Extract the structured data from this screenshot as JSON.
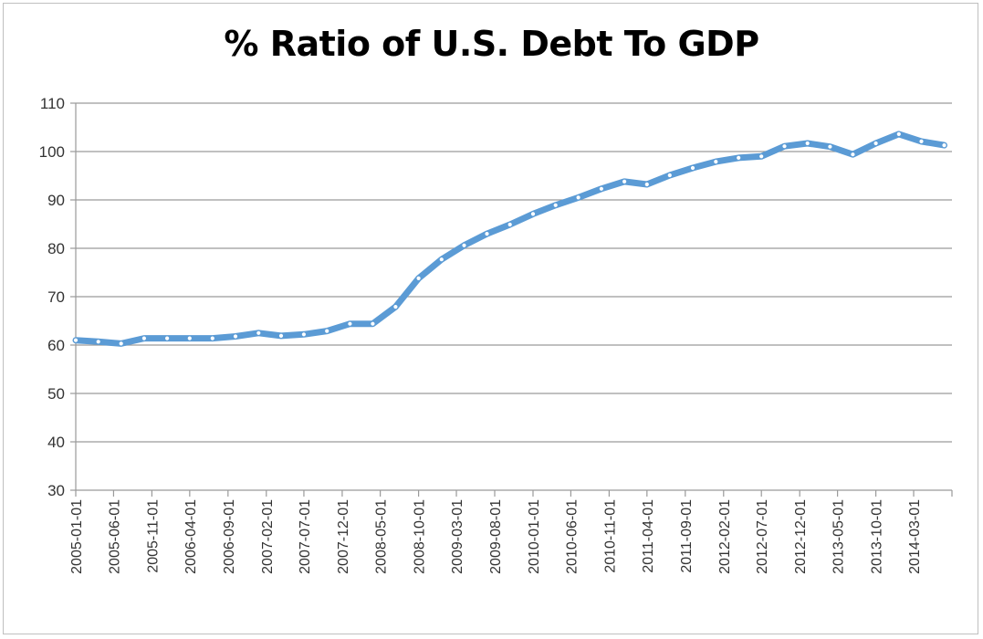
{
  "chart_data": {
    "type": "line",
    "title": "% Ratio of U.S. Debt To GDP",
    "xlabel": "",
    "ylabel": "",
    "ylim": [
      30,
      110
    ],
    "yticks": [
      30,
      40,
      50,
      60,
      70,
      80,
      90,
      100,
      110
    ],
    "grid": true,
    "legend": "none",
    "x_tick_labels": [
      "2005-01-01",
      "2005-06-01",
      "2005-11-01",
      "2006-04-01",
      "2006-09-01",
      "2007-02-01",
      "2007-07-01",
      "2007-12-01",
      "2008-05-01",
      "2008-10-01",
      "2009-03-01",
      "2009-08-01",
      "2010-01-01",
      "2010-06-01",
      "2010-11-01",
      "2011-04-01",
      "2011-09-01",
      "2012-02-01",
      "2012-07-01",
      "2012-12-01",
      "2013-05-01",
      "2013-10-01",
      "2014-03-01"
    ],
    "x": [
      "2005-01-01",
      "2005-04-01",
      "2005-07-01",
      "2005-10-01",
      "2006-01-01",
      "2006-04-01",
      "2006-07-01",
      "2006-10-01",
      "2007-01-01",
      "2007-04-01",
      "2007-07-01",
      "2007-10-01",
      "2008-01-01",
      "2008-04-01",
      "2008-07-01",
      "2008-10-01",
      "2009-01-01",
      "2009-04-01",
      "2009-07-01",
      "2009-10-01",
      "2010-01-01",
      "2010-04-01",
      "2010-07-01",
      "2010-10-01",
      "2011-01-01",
      "2011-04-01",
      "2011-07-01",
      "2011-10-01",
      "2012-01-01",
      "2012-04-01",
      "2012-07-01",
      "2012-10-01",
      "2013-01-01",
      "2013-04-01",
      "2013-07-01",
      "2013-10-01",
      "2014-01-01",
      "2014-04-01",
      "2014-07-01"
    ],
    "series": [
      {
        "color": "#5b9bd5",
        "values": [
          61.0,
          60.7,
          60.3,
          61.4,
          61.4,
          61.4,
          61.4,
          61.8,
          62.5,
          61.9,
          62.2,
          62.9,
          64.4,
          64.4,
          67.9,
          73.8,
          77.7,
          80.6,
          83.0,
          84.9,
          87.1,
          88.9,
          90.5,
          92.3,
          93.8,
          93.2,
          95.1,
          96.6,
          97.9,
          98.7,
          99.0,
          101.1,
          101.7,
          101.0,
          99.4,
          101.7,
          103.6,
          102.1,
          101.3
        ]
      }
    ]
  }
}
